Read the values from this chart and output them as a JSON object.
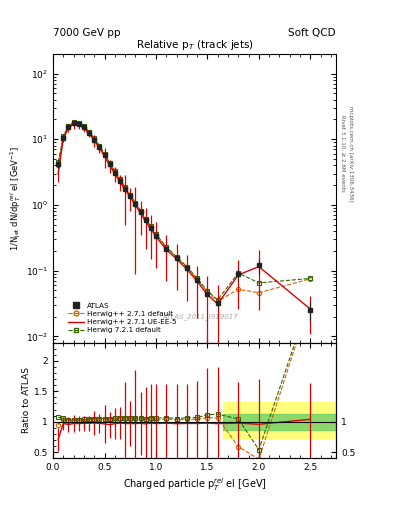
{
  "title_left": "7000 GeV pp",
  "title_right": "Soft QCD",
  "plot_title": "Relative p$_{T}$ (track jets)",
  "xlabel": "Charged particle p$_{T}^{rel}$ el [GeV]",
  "ylabel_main": "1/N$_{\\rm jet}$ dN/dp$_{T}^{rel}$ el [GeV$^{-1}$]",
  "ylabel_ratio": "Ratio to ATLAS",
  "right_label_top": "Rivet 3.1.10, ≥ 2.6M events",
  "right_label_bot": "mcplots.cern.ch [arXiv:1306.3436]",
  "watermark": "ATLAS_2011_I919017",
  "atlas_x": [
    0.05,
    0.1,
    0.15,
    0.2,
    0.25,
    0.3,
    0.35,
    0.4,
    0.45,
    0.5,
    0.55,
    0.6,
    0.65,
    0.7,
    0.75,
    0.8,
    0.85,
    0.9,
    0.95,
    1.0,
    1.1,
    1.2,
    1.3,
    1.4,
    1.5,
    1.6,
    1.8,
    2.0,
    2.5
  ],
  "atlas_y": [
    4.2,
    10.5,
    15.5,
    17.5,
    17.0,
    15.2,
    12.5,
    9.8,
    7.6,
    5.7,
    4.2,
    3.1,
    2.3,
    1.75,
    1.35,
    1.02,
    0.77,
    0.58,
    0.44,
    0.34,
    0.215,
    0.155,
    0.108,
    0.071,
    0.044,
    0.032,
    0.088,
    0.12,
    0.025
  ],
  "atlas_yerr_lo": [
    0.6,
    0.9,
    1.1,
    1.2,
    1.1,
    1.0,
    0.8,
    0.65,
    0.5,
    0.38,
    0.28,
    0.21,
    0.16,
    0.12,
    0.1,
    0.075,
    0.058,
    0.044,
    0.034,
    0.026,
    0.018,
    0.013,
    0.01,
    0.007,
    0.005,
    0.004,
    0.018,
    0.03,
    0.008
  ],
  "atlas_yerr_hi": [
    0.6,
    0.9,
    1.1,
    1.2,
    1.1,
    1.0,
    0.8,
    0.65,
    0.5,
    0.38,
    0.28,
    0.21,
    0.16,
    0.12,
    0.1,
    0.075,
    0.058,
    0.044,
    0.034,
    0.026,
    0.018,
    0.013,
    0.01,
    0.007,
    0.005,
    0.004,
    0.018,
    0.03,
    0.008
  ],
  "hw271_x": [
    0.05,
    0.1,
    0.15,
    0.2,
    0.25,
    0.3,
    0.35,
    0.4,
    0.45,
    0.5,
    0.55,
    0.6,
    0.65,
    0.7,
    0.75,
    0.8,
    0.85,
    0.9,
    0.95,
    1.0,
    1.1,
    1.2,
    1.3,
    1.4,
    1.5,
    1.6,
    1.8,
    2.0,
    2.5
  ],
  "hw271_y": [
    4.0,
    10.8,
    15.8,
    17.8,
    17.2,
    15.5,
    12.8,
    10.1,
    7.8,
    5.9,
    4.3,
    3.2,
    2.4,
    1.82,
    1.4,
    1.06,
    0.8,
    0.6,
    0.46,
    0.35,
    0.225,
    0.16,
    0.112,
    0.074,
    0.047,
    0.034,
    0.052,
    0.046,
    0.075
  ],
  "hw271ueee5_x": [
    0.05,
    0.1,
    0.15,
    0.2,
    0.25,
    0.3,
    0.35,
    0.4,
    0.45,
    0.5,
    0.55,
    0.6,
    0.65,
    0.7,
    0.75,
    0.8,
    0.85,
    0.9,
    0.95,
    1.0,
    1.1,
    1.2,
    1.3,
    1.4,
    1.5,
    1.6,
    1.8,
    2.0,
    2.5
  ],
  "hw271ueee5_y": [
    3.0,
    10.2,
    14.8,
    17.0,
    16.5,
    14.8,
    12.2,
    9.6,
    7.4,
    5.5,
    4.0,
    3.0,
    2.25,
    1.7,
    1.31,
    0.99,
    0.75,
    0.56,
    0.43,
    0.33,
    0.21,
    0.15,
    0.105,
    0.069,
    0.043,
    0.031,
    0.086,
    0.115,
    0.026
  ],
  "hw271ueee5_yerr": [
    0.8,
    1.2,
    2.0,
    2.5,
    2.2,
    1.8,
    1.5,
    2.0,
    1.2,
    1.8,
    0.9,
    0.8,
    0.6,
    1.2,
    0.5,
    0.9,
    0.4,
    0.35,
    0.28,
    0.22,
    0.14,
    0.1,
    0.07,
    0.05,
    0.04,
    0.03,
    0.06,
    0.09,
    0.015
  ],
  "hw721_x": [
    0.05,
    0.1,
    0.15,
    0.2,
    0.25,
    0.3,
    0.35,
    0.4,
    0.45,
    0.5,
    0.55,
    0.6,
    0.65,
    0.7,
    0.75,
    0.8,
    0.85,
    0.9,
    0.95,
    1.0,
    1.1,
    1.2,
    1.3,
    1.4,
    1.5,
    1.6,
    1.8,
    2.0,
    2.5
  ],
  "hw721_y": [
    4.5,
    11.2,
    16.0,
    18.0,
    17.5,
    15.8,
    13.0,
    10.3,
    8.0,
    6.0,
    4.4,
    3.3,
    2.45,
    1.86,
    1.43,
    1.08,
    0.82,
    0.61,
    0.47,
    0.36,
    0.23,
    0.163,
    0.115,
    0.076,
    0.049,
    0.036,
    0.092,
    0.065,
    0.076
  ],
  "xlim": [
    0.0,
    2.75
  ],
  "ylim_main": [
    0.008,
    200
  ],
  "ylim_ratio": [
    0.4,
    2.3
  ],
  "ratio_yticks": [
    0.5,
    1.0,
    1.5,
    2.0
  ],
  "atlas_color": "#222222",
  "hw271_color": "#cc6600",
  "hw271ueee5_color": "#dd0000",
  "hw721_color": "#336600",
  "green_band": [
    0.87,
    1.13
  ],
  "yellow_band": [
    0.73,
    1.32
  ],
  "band_xstart": 1.65
}
